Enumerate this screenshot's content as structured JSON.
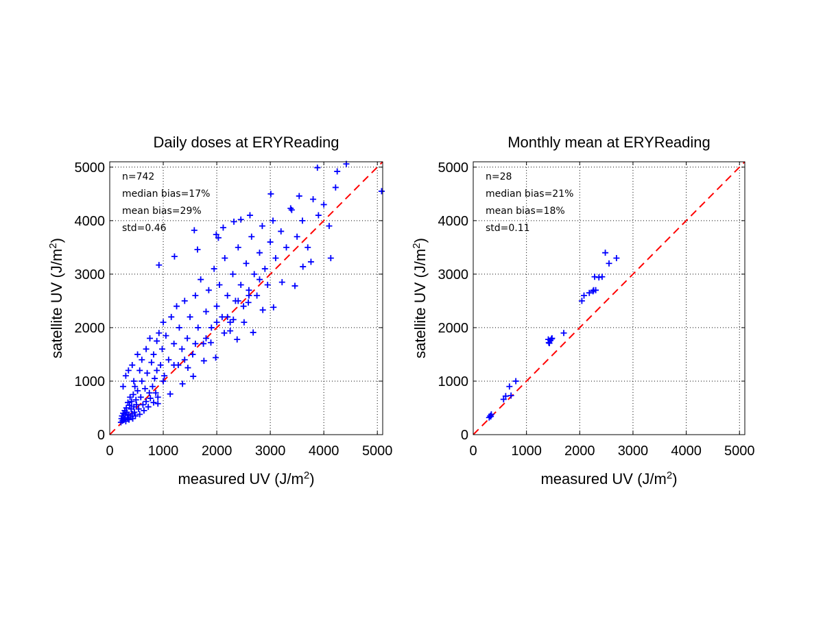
{
  "chart_data": [
    {
      "type": "scatter",
      "title": "Daily doses at ERYReading",
      "xlabel": "measured UV (J/m",
      "ylabel": "satellite UV (J/m",
      "label_sup": "2",
      "label_close": ")",
      "xlim": [
        0,
        5100
      ],
      "ylim": [
        0,
        5100
      ],
      "xticks": [
        "0",
        "1000",
        "2000",
        "3000",
        "4000",
        "5000"
      ],
      "yticks": [
        "0",
        "1000",
        "2000",
        "3000",
        "4000",
        "5000"
      ],
      "grid": true,
      "stats": [
        "n=742",
        "median bias=17%",
        "mean bias=29%",
        "std=0.46"
      ],
      "marker_color": "#0000ff",
      "line_color": "#ff0000",
      "reference_line": [
        [
          0,
          0
        ],
        [
          5100,
          5100
        ]
      ],
      "points": [
        [
          210,
          230
        ],
        [
          220,
          300
        ],
        [
          230,
          350
        ],
        [
          240,
          260
        ],
        [
          250,
          400
        ],
        [
          260,
          320
        ],
        [
          270,
          280
        ],
        [
          280,
          450
        ],
        [
          290,
          380
        ],
        [
          300,
          250
        ],
        [
          310,
          500
        ],
        [
          320,
          420
        ],
        [
          330,
          300
        ],
        [
          340,
          600
        ],
        [
          350,
          360
        ],
        [
          360,
          280
        ],
        [
          370,
          550
        ],
        [
          380,
          700
        ],
        [
          390,
          330
        ],
        [
          400,
          480
        ],
        [
          410,
          620
        ],
        [
          420,
          390
        ],
        [
          430,
          300
        ],
        [
          440,
          750
        ],
        [
          450,
          520
        ],
        [
          460,
          420
        ],
        [
          470,
          900
        ],
        [
          480,
          350
        ],
        [
          490,
          650
        ],
        [
          500,
          560
        ],
        [
          520,
          820
        ],
        [
          540,
          480
        ],
        [
          560,
          380
        ],
        [
          580,
          700
        ],
        [
          600,
          1000
        ],
        [
          620,
          560
        ],
        [
          640,
          450
        ],
        [
          660,
          860
        ],
        [
          680,
          620
        ],
        [
          700,
          1150
        ],
        [
          720,
          520
        ],
        [
          740,
          780
        ],
        [
          760,
          680
        ],
        [
          780,
          1350
        ],
        [
          800,
          900
        ],
        [
          820,
          600
        ],
        [
          840,
          1050
        ],
        [
          860,
          780
        ],
        [
          880,
          1200
        ],
        [
          900,
          700
        ],
        [
          250,
          900
        ],
        [
          300,
          1100
        ],
        [
          350,
          1200
        ],
        [
          420,
          1300
        ],
        [
          450,
          1000
        ],
        [
          520,
          1500
        ],
        [
          560,
          1200
        ],
        [
          600,
          1400
        ],
        [
          680,
          1600
        ],
        [
          750,
          1800
        ],
        [
          820,
          1500
        ],
        [
          880,
          1750
        ],
        [
          920,
          1900
        ],
        [
          950,
          1300
        ],
        [
          980,
          1600
        ],
        [
          1000,
          2100
        ],
        [
          1020,
          1100
        ],
        [
          1050,
          1850
        ],
        [
          1100,
          1400
        ],
        [
          1150,
          2200
        ],
        [
          1200,
          1700
        ],
        [
          1250,
          2400
        ],
        [
          1280,
          1300
        ],
        [
          1300,
          2000
        ],
        [
          1350,
          1600
        ],
        [
          1400,
          2500
        ],
        [
          1450,
          1800
        ],
        [
          1500,
          2200
        ],
        [
          1550,
          1500
        ],
        [
          1600,
          2600
        ],
        [
          1650,
          2000
        ],
        [
          1700,
          2900
        ],
        [
          1750,
          1700
        ],
        [
          1800,
          2300
        ],
        [
          1850,
          2700
        ],
        [
          1900,
          2000
        ],
        [
          1950,
          3100
        ],
        [
          2000,
          2400
        ],
        [
          2050,
          2800
        ],
        [
          2100,
          2200
        ],
        [
          2150,
          3300
        ],
        [
          2200,
          2600
        ],
        [
          2250,
          2100
        ],
        [
          2300,
          3000
        ],
        [
          2350,
          2500
        ],
        [
          2400,
          3500
        ],
        [
          2450,
          2800
        ],
        [
          2500,
          2400
        ],
        [
          2550,
          3200
        ],
        [
          2600,
          2700
        ],
        [
          2650,
          3700
        ],
        [
          2700,
          3000
        ],
        [
          2750,
          2600
        ],
        [
          2800,
          3400
        ],
        [
          2850,
          3900
        ],
        [
          2900,
          3100
        ],
        [
          2950,
          2800
        ],
        [
          3000,
          3600
        ],
        [
          3050,
          4000
        ],
        [
          3100,
          3300
        ],
        [
          3200,
          3800
        ],
        [
          3300,
          3500
        ],
        [
          3400,
          4200
        ],
        [
          3500,
          3700
        ],
        [
          3600,
          4000
        ],
        [
          3700,
          3500
        ],
        [
          3800,
          4400
        ],
        [
          3900,
          4100
        ],
        [
          4000,
          4300
        ],
        [
          4100,
          3900
        ],
        [
          1000,
          1000
        ],
        [
          1200,
          1300
        ],
        [
          1400,
          1400
        ],
        [
          1600,
          1700
        ],
        [
          1800,
          1800
        ],
        [
          2000,
          2100
        ],
        [
          2200,
          2200
        ],
        [
          2400,
          2500
        ],
        [
          2600,
          2600
        ],
        [
          2800,
          2900
        ],
        [
          920,
          3170
        ],
        [
          1210,
          3330
        ],
        [
          1580,
          3820
        ],
        [
          1640,
          3460
        ],
        [
          1990,
          3740
        ],
        [
          2030,
          3680
        ],
        [
          2120,
          3870
        ],
        [
          2320,
          3980
        ],
        [
          2450,
          4020
        ],
        [
          2620,
          4100
        ],
        [
          3010,
          4500
        ],
        [
          3380,
          4230
        ],
        [
          3540,
          4460
        ],
        [
          3760,
          3230
        ],
        [
          3880,
          4990
        ],
        [
          4130,
          3300
        ],
        [
          4220,
          4620
        ],
        [
          4250,
          4920
        ],
        [
          4420,
          5060
        ],
        [
          5080,
          4550
        ],
        [
          1980,
          1440
        ],
        [
          2250,
          1940
        ],
        [
          2380,
          1780
        ],
        [
          2510,
          2100
        ],
        [
          2680,
          1910
        ],
        [
          2860,
          2330
        ],
        [
          3060,
          2380
        ],
        [
          3220,
          2850
        ],
        [
          3460,
          2780
        ],
        [
          3610,
          3140
        ],
        [
          1560,
          1090
        ],
        [
          1760,
          1380
        ],
        [
          1360,
          950
        ],
        [
          1130,
          760
        ],
        [
          900,
          580
        ],
        [
          1460,
          1250
        ],
        [
          1890,
          1720
        ],
        [
          2140,
          1900
        ],
        [
          2310,
          2150
        ],
        [
          2590,
          2470
        ]
      ]
    },
    {
      "type": "scatter",
      "title": "Monthly mean at ERYReading",
      "xlabel": "measured UV (J/m",
      "ylabel": "satellite UV (J/m",
      "label_sup": "2",
      "label_close": ")",
      "xlim": [
        0,
        5100
      ],
      "ylim": [
        0,
        5100
      ],
      "xticks": [
        "0",
        "1000",
        "2000",
        "3000",
        "4000",
        "5000"
      ],
      "yticks": [
        "0",
        "1000",
        "2000",
        "3000",
        "4000",
        "5000"
      ],
      "grid": true,
      "stats": [
        "n=28",
        "median bias=21%",
        "mean bias=18%",
        "std=0.11"
      ],
      "marker_color": "#0000ff",
      "line_color": "#ff0000",
      "reference_line": [
        [
          0,
          0
        ],
        [
          5100,
          5100
        ]
      ],
      "points": [
        [
          300,
          320
        ],
        [
          320,
          350
        ],
        [
          340,
          380
        ],
        [
          570,
          660
        ],
        [
          610,
          720
        ],
        [
          680,
          900
        ],
        [
          710,
          730
        ],
        [
          800,
          1000
        ],
        [
          1410,
          1780
        ],
        [
          1420,
          1720
        ],
        [
          1450,
          1760
        ],
        [
          1480,
          1800
        ],
        [
          1700,
          1900
        ],
        [
          2040,
          2500
        ],
        [
          2080,
          2600
        ],
        [
          2180,
          2650
        ],
        [
          2260,
          2700
        ],
        [
          2280,
          2950
        ],
        [
          2300,
          2700
        ],
        [
          2360,
          2940
        ],
        [
          2420,
          2950
        ],
        [
          2480,
          3400
        ],
        [
          2550,
          3200
        ],
        [
          2690,
          3300
        ],
        [
          1430,
          1710
        ],
        [
          1470,
          1790
        ],
        [
          2250,
          2680
        ],
        [
          330,
          340
        ]
      ]
    }
  ]
}
